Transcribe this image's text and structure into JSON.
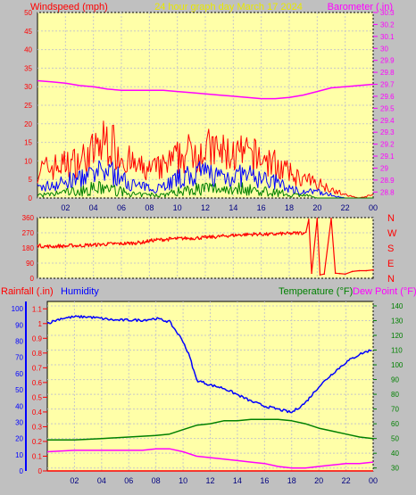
{
  "chart_data": [
    {
      "type": "line",
      "title": "24 hour graph day   March 17 2024",
      "left_label": "Windspeed (mph)",
      "right_label": "Barometer (.in)",
      "x_ticks": [
        "02",
        "04",
        "06",
        "08",
        "10",
        "12",
        "14",
        "16",
        "18",
        "20",
        "22",
        "00"
      ],
      "y_left_ticks": [
        "0",
        "5",
        "10",
        "15",
        "20",
        "25",
        "30",
        "35",
        "40",
        "45",
        "50"
      ],
      "y_left_lim": [
        0,
        50
      ],
      "y_right_ticks": [
        "28.8",
        "28.9",
        "29",
        "29.1",
        "29.2",
        "29.3",
        "29.4",
        "29.5",
        "29.6",
        "29.7",
        "29.8",
        "29.9",
        "30",
        "30.1",
        "30.2",
        "30.3"
      ],
      "y_right_lim": [
        28.75,
        30.3
      ],
      "colors": {
        "gust": "#ff0000",
        "avg": "#0000ff",
        "low": "#008000",
        "baro": "#ff00ff"
      },
      "series": [
        {
          "name": "Barometer (.in)",
          "axis": "right",
          "x": [
            0,
            1,
            2,
            3,
            4,
            5,
            6,
            7,
            8,
            9,
            10,
            11,
            12,
            13,
            14,
            15,
            16,
            17,
            18,
            19,
            20,
            21,
            22,
            23,
            24
          ],
          "values": [
            29.73,
            29.72,
            29.71,
            29.69,
            29.68,
            29.66,
            29.65,
            29.65,
            29.65,
            29.65,
            29.64,
            29.63,
            29.62,
            29.61,
            29.6,
            29.59,
            29.58,
            29.58,
            29.59,
            29.61,
            29.64,
            29.67,
            29.68,
            29.69,
            29.7
          ]
        },
        {
          "name": "Wind gust (mph)",
          "axis": "left",
          "x": [
            0,
            1,
            2,
            3,
            4,
            5,
            6,
            7,
            8,
            9,
            10,
            11,
            12,
            13,
            14,
            15,
            16,
            17,
            18,
            19,
            20,
            21,
            22,
            23,
            24
          ],
          "values": [
            9,
            10,
            11,
            12,
            15,
            19,
            14,
            10,
            9,
            10,
            13,
            15,
            16,
            15,
            14,
            14,
            13,
            11,
            8,
            6,
            5,
            3,
            1,
            0,
            1
          ]
        },
        {
          "name": "Wind average (mph)",
          "axis": "left",
          "x": [
            0,
            1,
            2,
            3,
            4,
            5,
            6,
            7,
            8,
            9,
            10,
            11,
            12,
            13,
            14,
            15,
            16,
            17,
            18,
            19,
            20,
            21,
            22,
            23,
            24
          ],
          "values": [
            3,
            4,
            5,
            6,
            7,
            9,
            6,
            4,
            3,
            4,
            6,
            7,
            8,
            7,
            7,
            7,
            6,
            5,
            3,
            2,
            2,
            1,
            0,
            0,
            0
          ]
        },
        {
          "name": "Wind low (mph)",
          "axis": "left",
          "x": [
            0,
            1,
            2,
            3,
            4,
            5,
            6,
            7,
            8,
            9,
            10,
            11,
            12,
            13,
            14,
            15,
            16,
            17,
            18,
            19,
            20,
            21,
            22,
            23,
            24
          ],
          "values": [
            1,
            1,
            2,
            2,
            3,
            3,
            2,
            1,
            1,
            1,
            2,
            3,
            3,
            3,
            3,
            3,
            2,
            2,
            1,
            1,
            0,
            0,
            0,
            0,
            0
          ]
        }
      ]
    },
    {
      "type": "scatter",
      "title": "",
      "y_left_ticks": [
        "0",
        "90",
        "180",
        "270",
        "360"
      ],
      "y_lim": [
        0,
        360
      ],
      "right_labels": [
        "N",
        "W",
        "S",
        "E",
        "N"
      ],
      "x": [
        0,
        0.5,
        1,
        1.5,
        2,
        2.5,
        3,
        3.5,
        4,
        4.5,
        5,
        5.5,
        6,
        6.5,
        7,
        7.5,
        8,
        8.5,
        9,
        9.5,
        10,
        10.5,
        11,
        11.5,
        12,
        12.5,
        13,
        13.5,
        14,
        14.5,
        15,
        15.5,
        16,
        16.5,
        17,
        17.5,
        18,
        18.5,
        19,
        19.2,
        19.4,
        19.6,
        20,
        20.2,
        20.5,
        21,
        21.3,
        21.6,
        22,
        22.5,
        23,
        23.5,
        24
      ],
      "values": [
        195,
        190,
        188,
        192,
        190,
        195,
        193,
        197,
        198,
        200,
        203,
        205,
        205,
        208,
        210,
        213,
        222,
        228,
        230,
        233,
        235,
        237,
        238,
        240,
        242,
        245,
        248,
        252,
        255,
        258,
        260,
        262,
        262,
        260,
        262,
        265,
        265,
        268,
        270,
        275,
        350,
        30,
        355,
        20,
        25,
        355,
        30,
        28,
        25,
        40,
        45,
        45,
        50
      ]
    },
    {
      "type": "line",
      "title": "",
      "left_label": "Rainfall (.in)",
      "left_label2": "Humidity",
      "right_label": "Temperature (°F)",
      "right_label2": "Dew Point (°F)",
      "y_rain_ticks": [
        "0",
        "0.1",
        "0.2",
        "0.3",
        "0.4",
        "0.5",
        "0.6",
        "0.7",
        "0.8",
        "0.9",
        "1",
        "1.1"
      ],
      "y_rain_lim": [
        0,
        1.15
      ],
      "y_hum_ticks": [
        "0",
        "10",
        "20",
        "30",
        "40",
        "50",
        "60",
        "70",
        "80",
        "90",
        "100"
      ],
      "y_hum_lim": [
        0,
        104.5
      ],
      "y_temp_ticks": [
        "30",
        "40",
        "50",
        "60",
        "70",
        "80",
        "90",
        "100",
        "110",
        "120",
        "130",
        "140"
      ],
      "y_temp_lim": [
        28,
        143
      ],
      "colors": {
        "rain": "#ff0000",
        "humidity": "#0000ff",
        "temp": "#008000",
        "dew": "#ff00ff"
      },
      "series": [
        {
          "name": "Humidity",
          "x": [
            0,
            1,
            2,
            3,
            4,
            5,
            6,
            7,
            8,
            9,
            10,
            10.5,
            11,
            12,
            13,
            14,
            15,
            16,
            17,
            18,
            19,
            20,
            21,
            22,
            23,
            24
          ],
          "values": [
            91,
            94,
            95,
            95,
            94,
            93,
            93,
            93,
            94,
            92,
            80,
            70,
            56,
            53,
            51,
            47,
            43,
            40,
            38,
            36,
            42,
            52,
            60,
            67,
            72,
            75
          ]
        },
        {
          "name": "Temperature (°F)",
          "x": [
            0,
            2,
            4,
            6,
            8,
            9,
            10,
            11,
            12,
            13,
            14,
            15,
            16,
            17,
            18,
            19,
            20,
            21,
            22,
            23,
            24
          ],
          "values": [
            49,
            49,
            50,
            51,
            52,
            53,
            56,
            59,
            60,
            62,
            62,
            63,
            63,
            63,
            62,
            60,
            57,
            55,
            53,
            51,
            50
          ]
        },
        {
          "name": "Dew Point (°F)",
          "x": [
            0,
            2,
            4,
            6,
            7,
            8,
            9,
            10,
            11,
            12,
            13,
            14,
            15,
            16,
            17,
            18,
            19,
            20,
            21,
            22,
            23,
            24
          ],
          "values": [
            41,
            42,
            42,
            42,
            42,
            43,
            43,
            41,
            38,
            37,
            36,
            35,
            34,
            33,
            31,
            30,
            30,
            31,
            32,
            33,
            33,
            34
          ]
        },
        {
          "name": "Rainfall (.in)",
          "x": [
            0,
            24
          ],
          "values": [
            0,
            0
          ]
        }
      ]
    }
  ]
}
